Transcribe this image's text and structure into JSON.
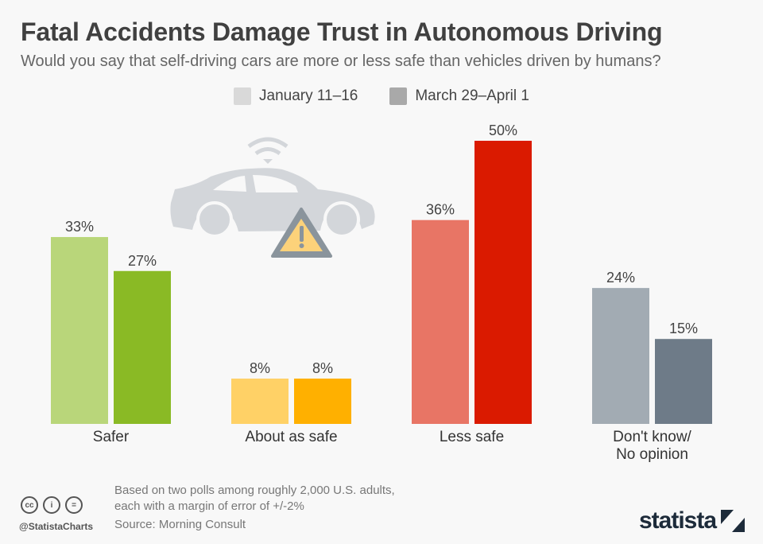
{
  "chart_data": {
    "type": "bar",
    "title": "Fatal Accidents Damage Trust in Autonomous Driving",
    "subtitle": "Would you say that self-driving cars are more or less safe than vehicles driven by humans?",
    "categories": [
      "Safer",
      "About as safe",
      "Less safe",
      "Don't know/\nNo opinion"
    ],
    "series": [
      {
        "name": "January 11–16",
        "values": [
          33,
          8,
          36,
          24
        ]
      },
      {
        "name": "March 29–April 1",
        "values": [
          27,
          8,
          50,
          15
        ]
      }
    ],
    "value_suffix": "%",
    "ylim": [
      0,
      50
    ],
    "grid": false,
    "legend": "top-center",
    "colors": {
      "legend": [
        "#d9d9d9",
        "#a9a9a9"
      ],
      "bars": [
        [
          "#b9d67a",
          "#8aba25"
        ],
        [
          "#ffd166",
          "#ffb000"
        ],
        [
          "#e87565",
          "#da1a00"
        ],
        [
          "#a2abb3",
          "#6e7b88"
        ]
      ]
    }
  },
  "footer": {
    "note_line1": "Based on two polls among roughly 2,000 U.S. adults,",
    "note_line2": "each with a margin of error of +/-2%",
    "source": "Source: Morning Consult",
    "handle": "@StatistaCharts",
    "logo": "statista"
  }
}
